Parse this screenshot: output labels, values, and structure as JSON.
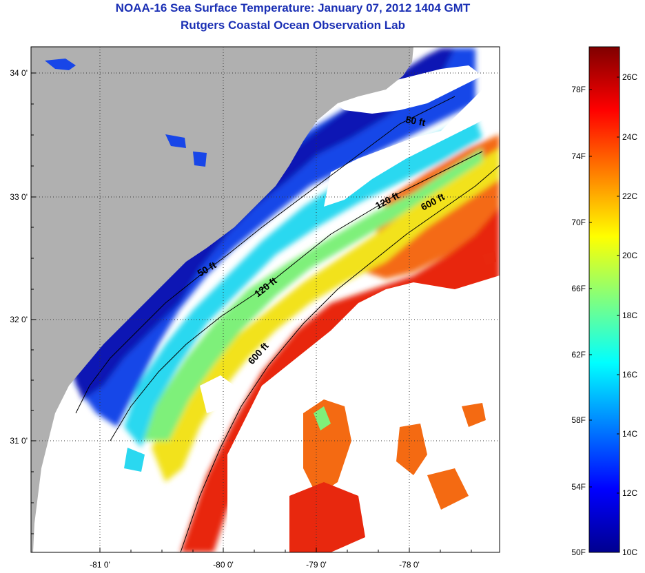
{
  "title": "NOAA-16 Sea Surface Temperature:  January 07, 2012 1404 GMT",
  "subtitle": "Rutgers Coastal Ocean Observation Lab",
  "map": {
    "lat_ticks": [
      "34 0'",
      "33 0'",
      "32 0'",
      "31 0'"
    ],
    "lon_ticks": [
      "-81 0'",
      "-80 0'",
      "-79 0'",
      "-78 0'"
    ],
    "isobaths": [
      {
        "label": "50 ft",
        "depth_ft": 50
      },
      {
        "label": "120 ft",
        "depth_ft": 120
      },
      {
        "label": "600 ft",
        "depth_ft": 600
      }
    ],
    "colors": {
      "land": "#b0b0b0",
      "no_data": "#ffffff",
      "isobath": "#000000"
    }
  },
  "colorbar": {
    "fahrenheit_labels": [
      "78F",
      "74F",
      "70F",
      "66F",
      "62F",
      "58F",
      "54F",
      "50F"
    ],
    "celsius_labels": [
      "26C",
      "24C",
      "22C",
      "20C",
      "18C",
      "16C",
      "14C",
      "12C",
      "10C"
    ],
    "range_c": [
      10,
      27.2
    ],
    "colormap": "jet"
  }
}
